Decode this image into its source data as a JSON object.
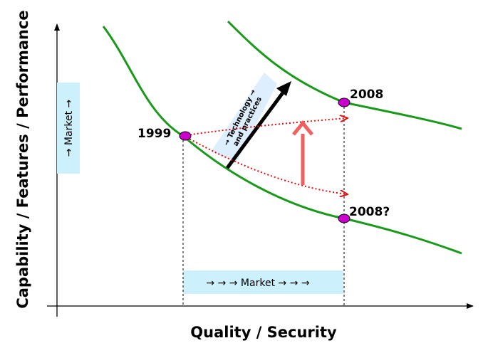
{
  "axes": {
    "x_title": "Quality / Security",
    "y_title": "Capability / Features / Performance"
  },
  "points": {
    "p1999": "1999",
    "p2008": "2008",
    "p2008q": "2008?"
  },
  "boxes": {
    "market_bottom": "→ → → Market → → →",
    "market_left": "→ Market →"
  },
  "tech_arrow": {
    "line1": "→ Technology →",
    "line2": "and practices"
  },
  "colors": {
    "curve": "#1a9a1a",
    "point": "#cc00cc",
    "dotted_arrow": "#e01010",
    "up_arrow": "#f06060",
    "market_box": "#ccf0fc",
    "tech_band": "#ddeeff"
  }
}
